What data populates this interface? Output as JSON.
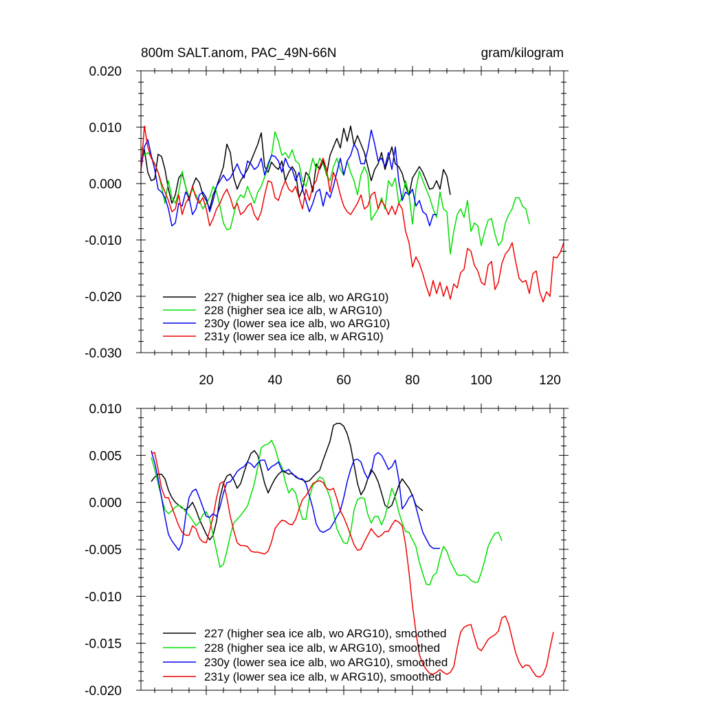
{
  "chart_data": [
    {
      "type": "line",
      "title_left": "800m SALT.anom, PAC_49N-66N",
      "title_right": "gram/kilogram",
      "xlim": [
        1,
        124
      ],
      "ylim": [
        -0.03,
        0.02
      ],
      "x_tick_values": [
        20,
        40,
        60,
        80,
        100,
        120
      ],
      "x_tick_labels": [
        "20",
        "40",
        "60",
        "80",
        "100",
        "120"
      ],
      "y_tick_values": [
        -0.03,
        -0.02,
        -0.01,
        0.0,
        0.01,
        0.02
      ],
      "y_tick_labels": [
        "-0.030",
        "-0.020",
        "-0.010",
        "0.000",
        "0.010",
        "0.020"
      ],
      "legend_position": "bottom-left",
      "series": [
        {
          "name": "227 (higher sea ice alb, wo ARG10)",
          "color": "#000000",
          "x_start": 1,
          "values": [
            0.004,
            0.006,
            0.002,
            0.0005,
            0.0008,
            0.0052,
            0.0048,
            0.0025,
            -0.001,
            -0.0035,
            -0.002,
            0.001,
            0.0018,
            -0.0005,
            -0.003,
            -0.0005,
            0.001,
            0.0002,
            -0.002,
            -0.003,
            -0.0045,
            -0.002,
            -0.0005,
            0.0012,
            0.003,
            0.007,
            0.0055,
            0.001,
            -0.001,
            0.0005,
            0.0015,
            0.0025,
            0.004,
            0.0055,
            0.007,
            0.009,
            0.003,
            0.002,
            0.0038,
            0.003,
            0.0025,
            0.004,
            0.0005,
            0.002,
            0.003,
            0.002,
            -0.0025,
            -0.001,
            0.002,
            0.0012,
            -0.0015,
            0.0035,
            0.0025,
            0.004,
            0.0015,
            0.005,
            0.0065,
            0.008,
            0.0063,
            0.0098,
            0.0075,
            0.0102,
            0.0068,
            0.0085,
            0.007,
            0.0055,
            0.003,
            0.0005,
            0.0025,
            0.0035,
            0.0055,
            0.0025,
            0.0045,
            0.0065,
            0.0035,
            0.003,
            0.0018,
            -0.0005,
            -0.002,
            0.001,
            0.002,
            0.003,
            0.002,
            0.0005,
            -0.001,
            -0.0008,
            0.0005,
            -0.001,
            0.0025,
            0.0013,
            -0.002
          ]
        },
        {
          "name": "228 (higher sea ice alb, w ARG10)",
          "color": "#00dd00",
          "x_start": 1,
          "values": [
            0.0065,
            0.005,
            0.0055,
            0.0048,
            0.0035,
            0.002,
            -0.0005,
            -0.0035,
            0.0005,
            -0.0025,
            -0.0035,
            -0.0015,
            0.0022,
            -0.0005,
            -0.0025,
            -0.001,
            -0.002,
            -0.003,
            -0.0045,
            -0.0035,
            -0.0025,
            -0.0005,
            -0.0015,
            -0.004,
            -0.007,
            -0.0082,
            -0.008,
            -0.0055,
            -0.003,
            -0.002,
            -0.0025,
            -0.0005,
            -0.002,
            -0.0035,
            -0.0015,
            -0.0005,
            0.0012,
            0.003,
            0.005,
            0.0092,
            0.0075,
            0.005,
            0.0055,
            0.0045,
            0.006,
            0.004,
            0.0035,
            0.0005,
            -0.0005,
            0.0018,
            0.0045,
            0.0025,
            0.0045,
            0.0035,
            0.0015,
            0.0005,
            0.003,
            0.0045,
            0.0025,
            0.0015,
            0.004,
            0.002,
            0.0005,
            -0.002,
            0.0015,
            0.003,
            0.0015,
            -0.0065,
            -0.0055,
            -0.0045,
            -0.0025,
            -0.0045,
            0.0005,
            -0.0005,
            0.001,
            -0.0035,
            -0.0025,
            0.0005,
            -0.002,
            -0.0072,
            -0.001,
            0.0022,
            0.0005,
            -0.001,
            -0.0025,
            -0.0045,
            -0.006,
            -0.0015,
            -0.0045,
            -0.005,
            -0.0125,
            -0.0085,
            -0.0055,
            -0.0045,
            -0.006,
            -0.003,
            -0.0085,
            -0.007,
            -0.0075,
            -0.011,
            -0.0085,
            -0.0065,
            -0.0062,
            -0.009,
            -0.011,
            -0.0102,
            -0.007,
            -0.0055,
            -0.0045,
            -0.0025,
            -0.0025,
            -0.004,
            -0.0045,
            -0.0072
          ]
        },
        {
          "name": "230y (lower sea ice alb, wo ARG10)",
          "color": "#0000ee",
          "x_start": 1,
          "values": [
            0.0025,
            0.0065,
            0.0078,
            0.005,
            0.0025,
            -0.001,
            -0.0015,
            -0.0025,
            -0.0045,
            -0.0075,
            -0.007,
            -0.0035,
            -0.004,
            -0.0015,
            -0.0025,
            -0.0055,
            -0.0045,
            -0.002,
            -0.0015,
            -0.0025,
            -0.005,
            -0.003,
            -0.0005,
            0.0005,
            0.0015,
            0.0005,
            0.001,
            0.0022,
            0.0035,
            0.002,
            0.001,
            0.004,
            0.0035,
            0.0025,
            0.003,
            0.0045,
            0.0015,
            0.0035,
            0.005,
            0.0048,
            0.004,
            0.002,
            0.0045,
            0.003,
            0.0025,
            0.0005,
            0.002,
            -0.001,
            -0.003,
            -0.005,
            -0.0035,
            -0.0015,
            -0.001,
            -0.004,
            -0.0015,
            -0.0025,
            -0.0005,
            0.002,
            0.0045,
            0.0015,
            0.004,
            0.005,
            0.007,
            0.006,
            0.0035,
            0.0035,
            0.006,
            0.0095,
            0.007,
            0.004,
            0.0045,
            0.003,
            0.0055,
            0.0025,
            0.0065,
            0.0005,
            -0.003,
            -0.0015,
            -0.002,
            -0.001,
            -0.004,
            -0.003,
            -0.005,
            -0.0055,
            -0.0075,
            -0.0055,
            -0.0055
          ]
        },
        {
          "name": "231y (lower sea ice alb, w ARG10)",
          "color": "#ee0000",
          "x_start": 1,
          "values": [
            0.002,
            0.0102,
            0.0065,
            0.0045,
            0.0035,
            0.002,
            0.0,
            -0.0015,
            -0.003,
            -0.005,
            -0.0045,
            -0.002,
            -0.0055,
            -0.0035,
            -0.0025,
            -0.0005,
            -0.0025,
            -0.0035,
            -0.0025,
            -0.0045,
            -0.0075,
            -0.0062,
            -0.0045,
            -0.0035,
            -0.002,
            -0.001,
            -0.0025,
            -0.0045,
            -0.0035,
            -0.0055,
            -0.005,
            -0.004,
            -0.0035,
            -0.0055,
            -0.0065,
            -0.005,
            -0.002,
            0.0005,
            0.0002,
            -0.0025,
            -0.003,
            -0.001,
            0.0005,
            -0.001,
            -0.0015,
            -0.0005,
            -0.0025,
            -0.0045,
            -0.001,
            -0.003,
            -0.0005,
            0.0005,
            0.003,
            0.0045,
            0.0025,
            -0.0015,
            0.002,
            0.0005,
            -0.002,
            -0.004,
            -0.005,
            -0.0055,
            -0.0045,
            -0.0035,
            -0.002,
            -0.0045,
            -0.004,
            -0.002,
            -0.0015,
            -0.0045,
            -0.003,
            -0.004,
            -0.0055,
            -0.004,
            -0.0055,
            -0.0035,
            -0.0045,
            -0.0085,
            -0.0105,
            -0.0148,
            -0.013,
            -0.0142,
            -0.016,
            -0.0182,
            -0.02,
            -0.0172,
            -0.0195,
            -0.0175,
            -0.02,
            -0.0182,
            -0.0205,
            -0.0178,
            -0.0185,
            -0.0158,
            -0.0152,
            -0.0115,
            -0.012,
            -0.0145,
            -0.0155,
            -0.0175,
            -0.018,
            -0.0145,
            -0.0138,
            -0.0188,
            -0.0175,
            -0.0142,
            -0.0125,
            -0.0118,
            -0.0105,
            -0.0138,
            -0.0168,
            -0.0175,
            -0.0172,
            -0.0195,
            -0.016,
            -0.0155,
            -0.0192,
            -0.021,
            -0.0192,
            -0.02,
            -0.013,
            -0.0132,
            -0.0122,
            -0.0105
          ]
        }
      ]
    },
    {
      "type": "line",
      "xlim": [
        1,
        124
      ],
      "ylim": [
        -0.02,
        0.01
      ],
      "x_tick_values": [
        20,
        40,
        60,
        80,
        100,
        120
      ],
      "y_tick_values": [
        -0.02,
        -0.015,
        -0.01,
        -0.005,
        0.0,
        0.005,
        0.01
      ],
      "y_tick_labels": [
        "-0.020",
        "-0.015",
        "-0.010",
        "-0.005",
        "0.000",
        "0.005",
        "0.010"
      ],
      "legend_position": "bottom-left",
      "series": [
        {
          "name": "227 (higher sea ice alb, wo ARG10), smoothed",
          "color": "#000000",
          "x_start": 4,
          "values": [
            0.0022,
            0.0027,
            0.003,
            0.003,
            0.0025,
            0.0013,
            0.0005,
            0.0,
            -0.0003,
            -0.0006,
            -0.0008,
            -0.0005,
            0.0,
            -0.0008,
            -0.0018,
            -0.0026,
            -0.0034,
            -0.004,
            -0.0035,
            -0.002,
            0.0005,
            0.002,
            0.0028,
            0.003,
            0.0024,
            0.0015,
            0.002,
            0.0032,
            0.0043,
            0.0052,
            0.0055,
            0.005,
            0.0035,
            0.002,
            0.001,
            0.0018,
            0.0025,
            0.003,
            0.0033,
            0.0032,
            0.003,
            0.0031,
            0.0027,
            0.0025,
            0.0024,
            0.0022,
            0.0023,
            0.0027,
            0.0031,
            0.0034,
            0.0045,
            0.0055,
            0.0065,
            0.0082,
            0.0084,
            0.0084,
            0.0081,
            0.0073,
            0.006,
            0.004,
            0.002,
            0.0008,
            0.0014,
            0.0025,
            0.0035,
            0.003,
            0.0022,
            0.001,
            -0.0003,
            -0.0006,
            -0.0003,
            0.0007,
            0.0018,
            0.0025,
            0.002,
            0.0015,
            0.0007,
            -0.0003,
            -0.0006,
            -0.0009
          ]
        },
        {
          "name": "228 (higher sea ice alb, w ARG10), smoothed",
          "color": "#00dd00",
          "x_start": 4,
          "values": [
            0.0048,
            0.0035,
            0.002,
            0.0005,
            -0.0008,
            -0.0012,
            -0.0009,
            -0.0005,
            -0.0003,
            -0.0005,
            -0.001,
            -0.0014,
            -0.0019,
            -0.0025,
            -0.0021,
            -0.0013,
            -0.001,
            -0.0018,
            -0.0035,
            -0.0052,
            -0.0069,
            -0.0066,
            -0.0052,
            -0.0035,
            -0.0022,
            -0.0018,
            -0.0014,
            -0.0009,
            -0.0004,
            0.0008,
            0.002,
            0.0038,
            0.0058,
            0.0061,
            0.0062,
            0.0066,
            0.0058,
            0.0045,
            0.0038,
            0.0022,
            0.001,
            0.0015,
            0.001,
            -0.0005,
            -0.0018,
            -0.0018,
            0.0005,
            0.0018,
            0.0022,
            0.0027,
            0.0025,
            0.0015,
            0.0005,
            -0.0011,
            -0.0028,
            -0.0036,
            -0.0043,
            -0.0044,
            -0.0032,
            -0.0008,
            0.0003,
            0.0005,
            0.0004,
            -0.0013,
            -0.0022,
            -0.0015,
            -0.0015,
            -0.0024,
            -0.0015,
            0.0,
            0.0015,
            0.0005,
            -0.001,
            -0.0022,
            -0.0031,
            -0.0032,
            -0.004,
            -0.0047,
            -0.0064,
            -0.0076,
            -0.0087,
            -0.0088,
            -0.0078,
            -0.0075,
            -0.0059,
            -0.0047,
            -0.0052,
            -0.0063,
            -0.007,
            -0.0077,
            -0.0078,
            -0.0077,
            -0.0079,
            -0.0083,
            -0.0085,
            -0.0085,
            -0.0075,
            -0.0062,
            -0.0047,
            -0.0039,
            -0.0033,
            -0.0032,
            -0.0041
          ]
        },
        {
          "name": "230y (lower sea ice alb, wo ARG10), smoothed",
          "color": "#0000ee",
          "x_start": 4,
          "values": [
            0.0055,
            0.0042,
            0.0025,
            0.0005,
            -0.0016,
            -0.0034,
            -0.0041,
            -0.0046,
            -0.0051,
            -0.0043,
            -0.0015,
            0.0005,
            0.0012,
            0.0014,
            0.0005,
            -0.0005,
            -0.0015,
            -0.0016,
            -0.0012,
            -0.0015,
            -0.0005,
            0.001,
            0.0021,
            0.0022,
            0.0027,
            0.0033,
            0.0036,
            0.0038,
            0.0043,
            0.0041,
            0.0037,
            0.0042,
            0.0045,
            0.0045,
            0.0034,
            0.0038,
            0.004,
            0.0043,
            0.0034,
            0.0033,
            0.0035,
            0.003,
            0.0028,
            0.0025,
            0.0025,
            0.002,
            0.0007,
            -0.0006,
            -0.0023,
            -0.003,
            -0.0032,
            -0.003,
            -0.0028,
            -0.0022,
            -0.0015,
            -0.0009,
            0.0005,
            0.0022,
            0.0035,
            0.0045,
            0.0046,
            0.0043,
            0.0032,
            0.0025,
            0.0032,
            0.005,
            0.0053,
            0.005,
            0.0043,
            0.0035,
            0.0038,
            0.0045,
            0.0025,
            -0.0007,
            -0.0002,
            0.0005,
            0.0008,
            -0.0005,
            -0.0019,
            -0.0032,
            -0.0039,
            -0.0046,
            -0.0049,
            -0.0049,
            -0.0049
          ]
        },
        {
          "name": "231y (lower sea ice alb, w ARG10), smoothed",
          "color": "#ee0000",
          "x_start": 4,
          "values": [
            0.0052,
            0.0053,
            0.0035,
            0.0015,
            0.0005,
            0.0005,
            -0.0005,
            -0.0015,
            -0.0025,
            -0.0032,
            -0.0035,
            -0.0035,
            -0.0025,
            -0.0028,
            -0.0038,
            -0.0042,
            -0.0043,
            -0.003,
            -0.0015,
            0.0005,
            0.002,
            0.0022,
            0.0005,
            -0.0015,
            -0.003,
            -0.0043,
            -0.0046,
            -0.0046,
            -0.0047,
            -0.0052,
            -0.0053,
            -0.0053,
            -0.0054,
            -0.0055,
            -0.0052,
            -0.0042,
            -0.0028,
            -0.0023,
            -0.0019,
            -0.002,
            -0.0023,
            -0.0024,
            -0.0018,
            -0.0007,
            0.0003,
            0.0007,
            0.0013,
            0.002,
            0.0022,
            0.0023,
            0.0021,
            0.0015,
            0.0013,
            0.0015,
            0.0004,
            -0.0009,
            -0.0016,
            -0.0025,
            -0.0035,
            -0.0045,
            -0.0051,
            -0.005,
            -0.0042,
            -0.0035,
            -0.0028,
            -0.0033,
            -0.0037,
            -0.0035,
            -0.0031,
            -0.0031,
            -0.0024,
            -0.0019,
            -0.0021,
            -0.0025,
            -0.0045,
            -0.0075,
            -0.011,
            -0.0138,
            -0.0162,
            -0.0172,
            -0.0178,
            -0.0182,
            -0.0183,
            -0.0181,
            -0.0178,
            -0.0181,
            -0.0183,
            -0.0181,
            -0.0175,
            -0.0155,
            -0.0138,
            -0.0133,
            -0.0131,
            -0.013,
            -0.0143,
            -0.0155,
            -0.0158,
            -0.0152,
            -0.0146,
            -0.0143,
            -0.0141,
            -0.0137,
            -0.0123,
            -0.0121,
            -0.013,
            -0.0145,
            -0.016,
            -0.017,
            -0.0176,
            -0.0173,
            -0.0174,
            -0.018,
            -0.0185,
            -0.0186,
            -0.0183,
            -0.0174,
            -0.0155,
            -0.0138
          ]
        }
      ]
    }
  ]
}
